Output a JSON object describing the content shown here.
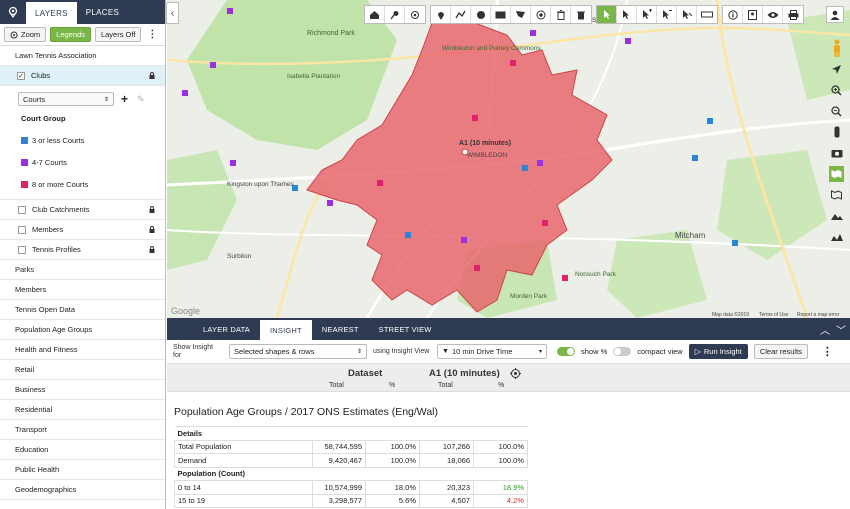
{
  "sidebar": {
    "tabs": [
      "LAYERS",
      "PLACES"
    ],
    "tools": {
      "zoom": "Zoom",
      "legends": "Legends",
      "layers_off": "Layers Off"
    },
    "group_title": "Lawn Tennis Association",
    "clubs_label": "Clubs",
    "courts_select": "Courts",
    "court_group_title": "Court Group",
    "court_groups": [
      {
        "label": "3 or less Courts",
        "color": "#2b84d6"
      },
      {
        "label": "4-7 Courts",
        "color": "#9b30e0"
      },
      {
        "label": "8 or more Courts",
        "color": "#e0206a"
      }
    ],
    "sub_layers": [
      "Club Catchments",
      "Members",
      "Tennis Profiles"
    ],
    "categories": [
      "Parks",
      "Members",
      "Tennis Open Data",
      "Population Age Groups",
      "Health and Fitness",
      "Retail",
      "Business",
      "Residential",
      "Transport",
      "Education",
      "Public Health",
      "Geodemographics"
    ]
  },
  "map": {
    "catchment_label": "A1 (10 minutes)",
    "place_labels": [
      "Richmond Park",
      "Isabella Plantation",
      "Kingston upon Thames",
      "WIMBLEDON",
      "Wimbledon and Putney Commons",
      "EARLSFIELD",
      "Mitcham",
      "Surbiton",
      "Morden Park",
      "Nonsuch Park"
    ],
    "attribution": [
      "Map data ©2019",
      "Terms of Use",
      "Report a map error"
    ],
    "google": "Google"
  },
  "bottom": {
    "tabs": [
      "LAYER DATA",
      "INSIGHT",
      "NEAREST",
      "STREET VIEW"
    ],
    "show_insight_for": "Show Insight for",
    "shapes_select": "Selected shapes & rows",
    "using_insight_view": "using Insight View",
    "drive_time": "10 min Drive Time",
    "show_pct": "show %",
    "compact_view": "compact view",
    "run_insight": "Run Insight",
    "clear_results": "Clear results",
    "header": {
      "dataset": "Dataset",
      "area": "A1 (10 minutes)",
      "total": "Total",
      "pct": "%"
    },
    "table_title": "Population Age Groups / 2017 ONS Estimates (Eng/Wal)",
    "rows": [
      {
        "type": "section",
        "label": "Details"
      },
      {
        "label": "Total Population",
        "total": "58,744,595",
        "pct": "100.0%",
        "a_total": "107,266",
        "a_pct": "100.0%"
      },
      {
        "label": "Demand",
        "total": "9,420,467",
        "pct": "100.0%",
        "a_total": "18,066",
        "a_pct": "100.0%"
      },
      {
        "type": "section",
        "label": "Population (Count)"
      },
      {
        "label": "0 to 14",
        "total": "10,574,999",
        "pct": "18.0%",
        "a_total": "20,323",
        "a_pct": "18.9%",
        "a_color": "green"
      },
      {
        "label": "15 to 19",
        "total": "3,298,577",
        "pct": "5.6%",
        "a_total": "4,507",
        "a_pct": "4.2%",
        "a_color": "red"
      }
    ]
  }
}
